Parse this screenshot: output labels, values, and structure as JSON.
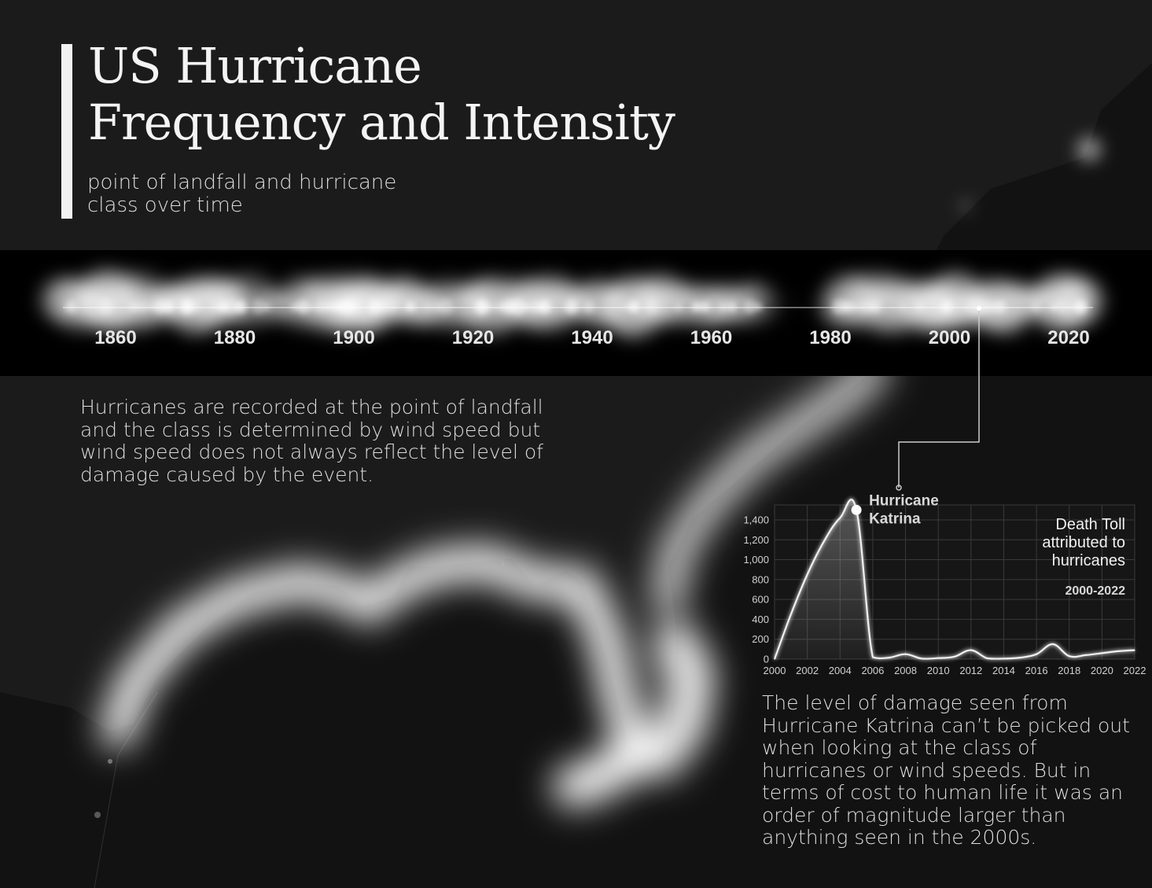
{
  "title": "US Hurricane Frequency and Intensity",
  "subtitle": "point of landfall and hurricane class over time",
  "timeline": {
    "tick_labels": [
      "1860",
      "1880",
      "1900",
      "1920",
      "1940",
      "1960",
      "1980",
      "2000",
      "2020"
    ],
    "x_range": [
      1851,
      2022
    ]
  },
  "intro_text": "Hurricanes are recorded at the point of landfall and the class is determined by wind speed but wind speed does not always reflect the level of damage caused by the event.",
  "katrina_text": "The level of damage seen from Hurricane Katrina can’t be picked out when looking at the class of hurricanes or wind speeds. But in terms of cost to human life it was an order of magnitude larger than anything seen in the 2000s.",
  "colors": {
    "background": "#121212",
    "band": "#000000",
    "glow": "#ffffff",
    "line": "#f0f0f0"
  },
  "chart_data": {
    "type": "line",
    "title": "Death Toll attributed to hurricanes",
    "subtitle": "2000-2022",
    "annotation": "Hurricane Katrina",
    "x": [
      2000,
      2001,
      2002,
      2003,
      2004,
      2005,
      2006,
      2007,
      2008,
      2009,
      2010,
      2011,
      2012,
      2013,
      2014,
      2015,
      2016,
      2017,
      2018,
      2019,
      2020,
      2021,
      2022
    ],
    "y": [
      0,
      450,
      850,
      1180,
      1420,
      1500,
      20,
      15,
      50,
      5,
      10,
      25,
      90,
      8,
      5,
      15,
      50,
      150,
      30,
      40,
      60,
      80,
      90
    ],
    "xticks": [
      "2000",
      "2002",
      "2004",
      "2006",
      "2008",
      "2010",
      "2012",
      "2014",
      "2016",
      "2018",
      "2020",
      "2022"
    ],
    "yticks": [
      "0",
      "200",
      "400",
      "600",
      "800",
      "1,000",
      "1,200",
      "1,400"
    ],
    "xlim": [
      2000,
      2022
    ],
    "ylim": [
      0,
      1550
    ],
    "grid": true,
    "highlight_x": 2005
  }
}
